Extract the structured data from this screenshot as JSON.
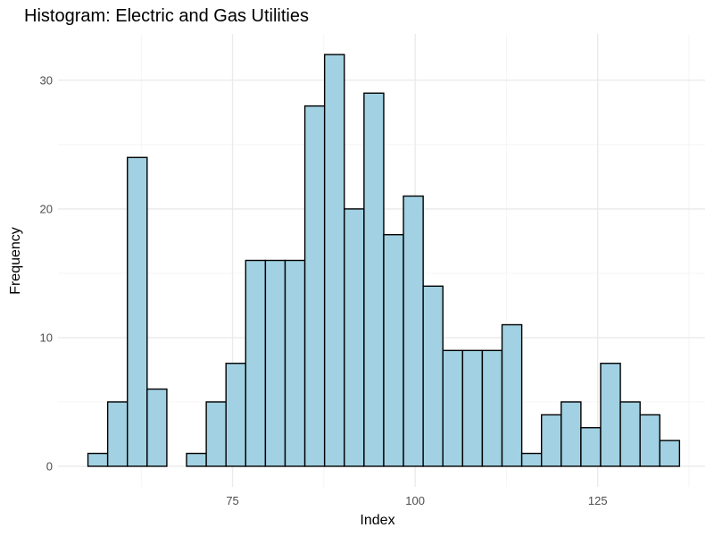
{
  "chart_data": {
    "type": "bar",
    "title": "Histogram: Electric and Gas Utilities",
    "xlabel": "Index",
    "ylabel": "Frequency",
    "bin_width": 2.7,
    "first_bin_start": 55.2,
    "counts": [
      1,
      5,
      24,
      6,
      0,
      1,
      5,
      8,
      16,
      16,
      16,
      28,
      32,
      20,
      29,
      18,
      21,
      14,
      9,
      9,
      9,
      11,
      1,
      4,
      5,
      3,
      8,
      5,
      4,
      2
    ],
    "xlim": [
      51.1,
      139.7
    ],
    "ylim": [
      -1.6,
      33.6
    ],
    "x_ticks": [
      75,
      100,
      125
    ],
    "x_tick_labels": [
      "75",
      "100",
      "125"
    ],
    "y_ticks": [
      0,
      10,
      20,
      30
    ],
    "y_tick_labels": [
      "0",
      "10",
      "20",
      "30"
    ],
    "grid": true,
    "legend": "none",
    "bar_fill": "#a1d1e2",
    "bar_outline": "#000000"
  }
}
